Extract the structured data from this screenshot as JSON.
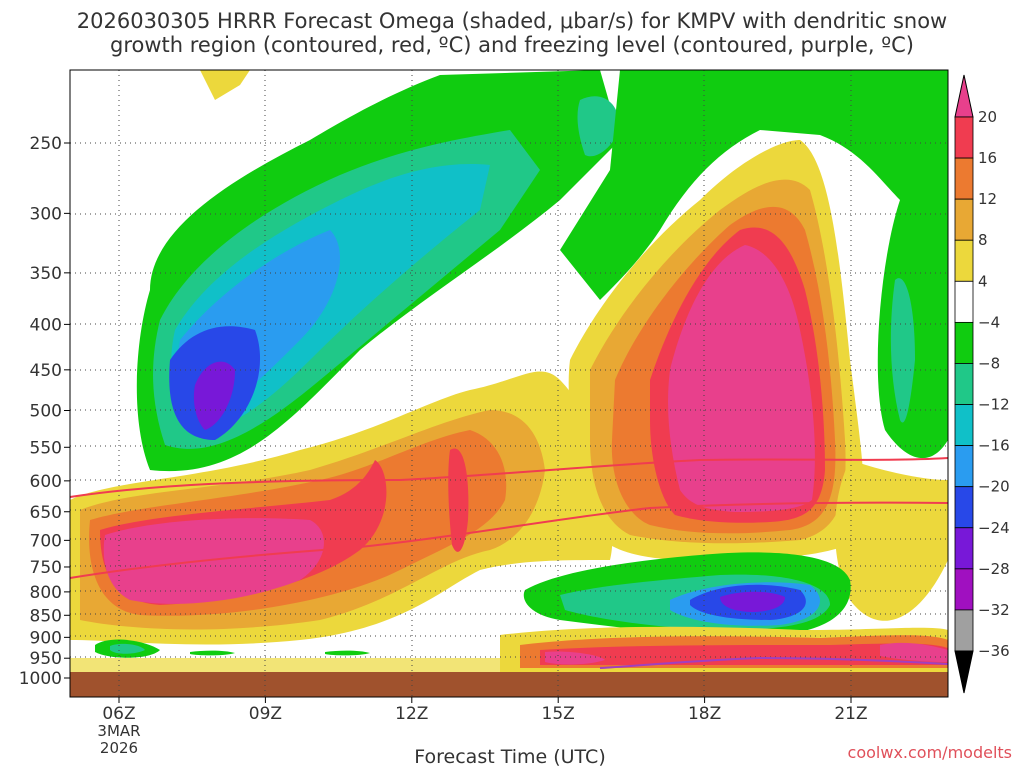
{
  "title_line1": "2026030305 HRRR Forecast Omega (shaded, μbar/s) for KMPV with dendritic snow",
  "title_line2": "growth region (contoured, red, ºC) and freezing level (contoured, purple, ºC)",
  "credit": "coolwx.com/modelts",
  "chart_data": {
    "type": "heatmap",
    "title": "2026030305 HRRR Forecast Omega (shaded, μbar/s) for KMPV with dendritic snow growth region (contoured, red, ºC) and freezing level (contoured, purple, ºC)",
    "xlabel": "Forecast Time (UTC)",
    "ylabel": "",
    "x_ticks": [
      "06Z",
      "09Z",
      "12Z",
      "15Z",
      "18Z",
      "21Z"
    ],
    "x_date_lines": [
      "3MAR",
      "2026"
    ],
    "y_ticks": [
      250,
      300,
      350,
      400,
      450,
      500,
      550,
      600,
      650,
      700,
      750,
      800,
      850,
      900,
      950,
      1000
    ],
    "y_scale": "log-pressure",
    "ylim": [
      1000,
      200
    ],
    "grid": true,
    "colorbar": {
      "labels": [
        "20",
        "16",
        "12",
        "8",
        "4",
        "−4",
        "−8",
        "−12",
        "−16",
        "−20",
        "−24",
        "−28",
        "−32",
        "−36"
      ],
      "colors": [
        "#e8408c",
        "#f03c50",
        "#ec7a30",
        "#e8a834",
        "#ecd83c",
        "#ffffff",
        "#10cc10",
        "#20c888",
        "#10c0c8",
        "#2a9cf0",
        "#2848e8",
        "#7818d8",
        "#a010c0",
        "#a0a0a0",
        "#000000"
      ]
    },
    "features": [
      {
        "label": "-28",
        "type": "minimum",
        "time": "08Z",
        "pressure": 480
      },
      {
        "label": "-24",
        "type": "minimum",
        "time": "08Z",
        "pressure": 440
      },
      {
        "label": "20",
        "type": "maximum",
        "time": "18.8Z",
        "pressure": 450
      },
      {
        "label": "20",
        "type": "maximum",
        "time": "07.5Z",
        "pressure": 760
      },
      {
        "label": "-28",
        "type": "minimum",
        "time": "19Z",
        "pressure": 820
      }
    ],
    "contours": [
      {
        "name": "dendritic growth -12C",
        "color": "#f03c50"
      },
      {
        "name": "dendritic growth -18C",
        "color": "#f03c50"
      },
      {
        "name": "freezing level 0C",
        "color": "#a040c0"
      }
    ]
  }
}
